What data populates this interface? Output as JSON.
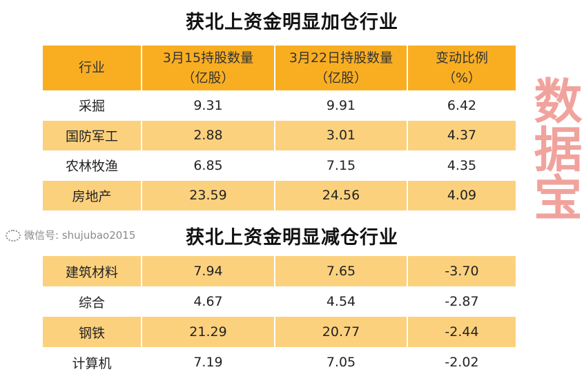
{
  "section1": {
    "title": "获北上资金明显加仓行业",
    "headers": [
      [
        "行业",
        ""
      ],
      [
        "3月15持股数量",
        "（亿股）"
      ],
      [
        "3月22日持股数量",
        "（亿股）"
      ],
      [
        "变动比例",
        "（%）"
      ]
    ],
    "rows": [
      [
        "采掘",
        "9.31",
        "9.91",
        "6.42"
      ],
      [
        "国防军工",
        "2.88",
        "3.01",
        "4.37"
      ],
      [
        "农林牧渔",
        "6.85",
        "7.15",
        "4.35"
      ],
      [
        "房地产",
        "23.59",
        "24.56",
        "4.09"
      ]
    ]
  },
  "section2": {
    "title": "获北上资金明显减仓行业",
    "rows": [
      [
        "建筑材料",
        "7.94",
        "7.65",
        "-3.70"
      ],
      [
        "综合",
        "4.67",
        "4.54",
        "-2.87"
      ],
      [
        "钢铁",
        "21.29",
        "20.77",
        "-2.44"
      ],
      [
        "计算机",
        "7.19",
        "7.05",
        "-2.02"
      ]
    ]
  },
  "watermark": "数据宝",
  "wechat": "微信号: shujubao2015",
  "colors": {
    "header": "#F9AE22",
    "stripe": "#FCD17E",
    "watermark": "#E6463C"
  }
}
